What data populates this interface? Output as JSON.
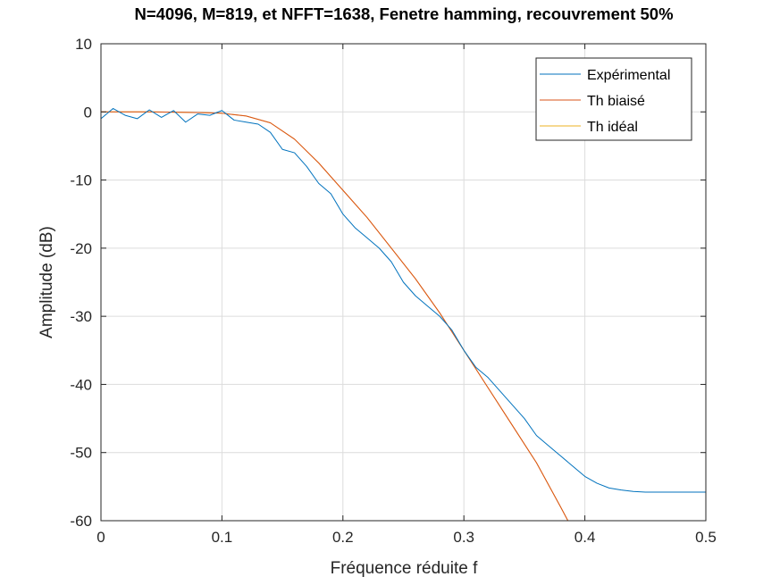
{
  "chart_data": {
    "type": "line",
    "title": "N=4096, M=819, et NFFT=1638, Fenetre hamming, recouvrement 50%",
    "xlabel": "Fréquence réduite f",
    "ylabel": "Amplitude (dB)",
    "xlim": [
      0,
      0.5
    ],
    "ylim": [
      -60,
      10
    ],
    "xticks": [
      0,
      0.1,
      0.2,
      0.3,
      0.4,
      0.5
    ],
    "yticks": [
      10,
      0,
      -10,
      -20,
      -30,
      -40,
      -50,
      -60
    ],
    "xtick_labels": [
      "0",
      "0.1",
      "0.2",
      "0.3",
      "0.4",
      "0.5"
    ],
    "ytick_labels": [
      "10",
      "0",
      "-10",
      "-20",
      "-30",
      "-40",
      "-50",
      "-60"
    ],
    "grid": true,
    "legend_position": "top-right",
    "series": [
      {
        "name": "Expérimental",
        "color": "#0072BD",
        "x": [
          0,
          0.01,
          0.02,
          0.03,
          0.04,
          0.05,
          0.06,
          0.07,
          0.08,
          0.09,
          0.1,
          0.11,
          0.12,
          0.13,
          0.14,
          0.15,
          0.16,
          0.17,
          0.18,
          0.19,
          0.2,
          0.21,
          0.22,
          0.23,
          0.24,
          0.25,
          0.26,
          0.27,
          0.28,
          0.29,
          0.3,
          0.31,
          0.32,
          0.33,
          0.34,
          0.35,
          0.36,
          0.37,
          0.38,
          0.39,
          0.4,
          0.41,
          0.42,
          0.43,
          0.44,
          0.45,
          0.46,
          0.47,
          0.48,
          0.49,
          0.5
        ],
        "y": [
          -1,
          0.5,
          -0.5,
          -1,
          0.3,
          -0.8,
          0.2,
          -1.5,
          -0.3,
          -0.5,
          0.2,
          -1.2,
          -1.5,
          -1.8,
          -3,
          -5.5,
          -6,
          -8,
          -10.5,
          -12,
          -15,
          -17,
          -18.5,
          -20,
          -22,
          -25,
          -27,
          -28.5,
          -30,
          -32,
          -35,
          -37.5,
          -39,
          -41,
          -43,
          -45,
          -47.5,
          -49,
          -50.5,
          -52,
          -53.5,
          -54.5,
          -55.2,
          -55.5,
          -55.7,
          -55.8,
          -55.8,
          -55.8,
          -55.8,
          -55.8,
          -55.8
        ]
      },
      {
        "name": "Th biaisé",
        "color": "#D95319",
        "x": [
          0,
          0.02,
          0.04,
          0.06,
          0.08,
          0.1,
          0.12,
          0.14,
          0.16,
          0.18,
          0.2,
          0.22,
          0.24,
          0.26,
          0.28,
          0.3,
          0.32,
          0.34,
          0.36,
          0.38,
          0.386
        ],
        "y": [
          0,
          0,
          0,
          -0.05,
          -0.1,
          -0.2,
          -0.6,
          -1.6,
          -4,
          -7.5,
          -11.5,
          -15.5,
          -20,
          -24.5,
          -29.5,
          -35,
          -40.5,
          -46,
          -51.5,
          -58,
          -60
        ]
      },
      {
        "name": "Th idéal",
        "color": "#EDB120",
        "x": [
          0,
          0.02,
          0.04,
          0.06,
          0.08,
          0.1,
          0.12,
          0.14,
          0.16,
          0.18,
          0.2,
          0.22,
          0.24,
          0.26,
          0.28,
          0.3,
          0.32,
          0.34,
          0.36,
          0.38,
          0.386
        ],
        "y": [
          0,
          0,
          0,
          -0.05,
          -0.1,
          -0.2,
          -0.6,
          -1.6,
          -4,
          -7.5,
          -11.5,
          -15.5,
          -20,
          -24.5,
          -29.5,
          -35,
          -40.5,
          -46,
          -51.5,
          -58,
          -60
        ]
      }
    ]
  }
}
